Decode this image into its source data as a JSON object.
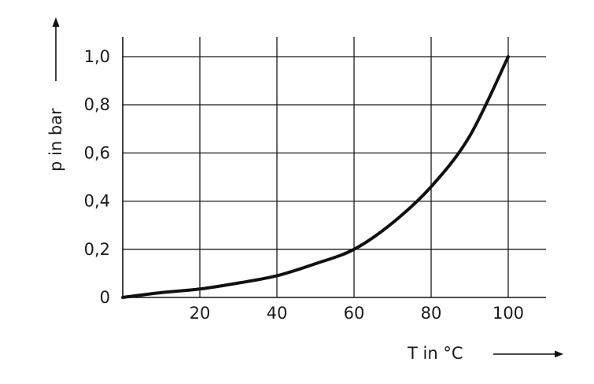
{
  "chart_data": {
    "type": "line",
    "xlabel": "T in °C",
    "ylabel": "p in bar",
    "xlim": [
      0,
      110
    ],
    "ylim": [
      0,
      1.1
    ],
    "x_ticks": [
      20,
      40,
      60,
      80,
      100
    ],
    "x_tick_labels": [
      "20",
      "40",
      "60",
      "80",
      "100"
    ],
    "y_ticks": [
      0,
      0.2,
      0.4,
      0.6,
      0.8,
      1.0
    ],
    "y_tick_labels": [
      "0",
      "0,2",
      "0,4",
      "0,6",
      "0,8",
      "1,0"
    ],
    "grid": true,
    "series": [
      {
        "x": [
          0,
          10,
          20,
          30,
          40,
          50,
          60,
          70,
          80,
          90,
          100
        ],
        "y": [
          0,
          0.02,
          0.035,
          0.06,
          0.09,
          0.14,
          0.2,
          0.31,
          0.46,
          0.67,
          1.0
        ]
      }
    ]
  }
}
